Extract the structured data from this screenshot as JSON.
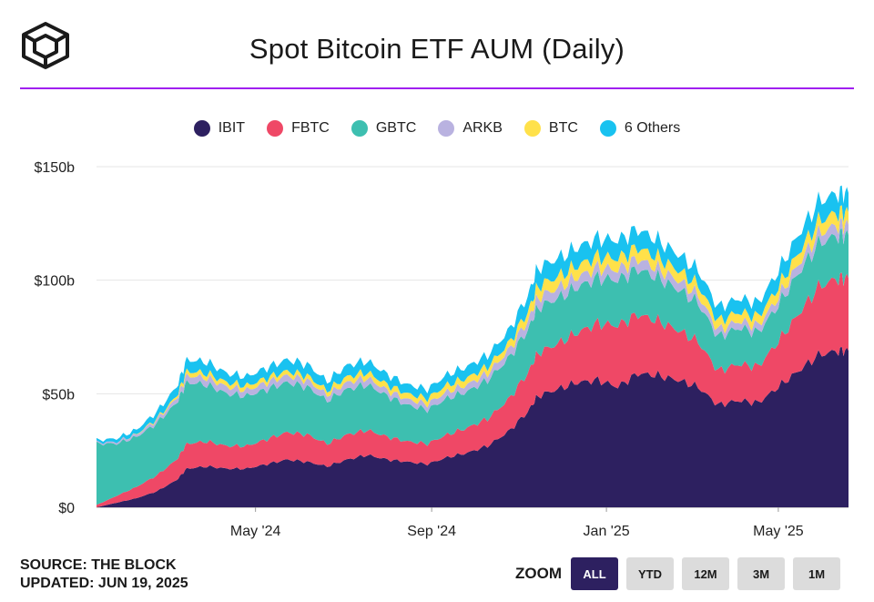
{
  "header": {
    "title": "Spot Bitcoin ETF AUM (Daily)"
  },
  "footer": {
    "source": "SOURCE: THE BLOCK",
    "updated": "UPDATED: JUN 19, 2025"
  },
  "zoom": {
    "label": "ZOOM",
    "buttons": [
      "ALL",
      "YTD",
      "12M",
      "3M",
      "1M"
    ],
    "active": "ALL"
  },
  "chart_data": {
    "type": "area",
    "stacked": true,
    "title": "Spot Bitcoin ETF AUM (Daily)",
    "ylim": [
      0,
      150
    ],
    "y_ticks": [
      0,
      50,
      100,
      150
    ],
    "y_tick_labels": [
      "$0",
      "$50b",
      "$100b",
      "$150b"
    ],
    "x_tick_labels": [
      "May '24",
      "Sep '24",
      "Jan '25",
      "May '25"
    ],
    "x_ticks": [
      "2024-05-01",
      "2024-09-01",
      "2025-01-01",
      "2025-05-01"
    ],
    "xlim": [
      "2024-01-11",
      "2025-06-19"
    ],
    "grid": true,
    "legend_position": "top-center",
    "x": [
      "2024-01-11",
      "2024-01-25",
      "2024-02-08",
      "2024-02-22",
      "2024-03-07",
      "2024-03-14",
      "2024-03-28",
      "2024-04-11",
      "2024-04-25",
      "2024-05-09",
      "2024-05-23",
      "2024-06-06",
      "2024-06-20",
      "2024-07-04",
      "2024-07-18",
      "2024-08-01",
      "2024-08-15",
      "2024-08-29",
      "2024-09-12",
      "2024-09-26",
      "2024-10-10",
      "2024-10-24",
      "2024-11-07",
      "2024-11-14",
      "2024-11-28",
      "2024-12-12",
      "2024-12-26",
      "2025-01-09",
      "2025-01-23",
      "2025-02-06",
      "2025-02-20",
      "2025-03-06",
      "2025-03-20",
      "2025-04-03",
      "2025-04-17",
      "2025-05-01",
      "2025-05-15",
      "2025-05-29",
      "2025-06-12",
      "2025-06-19"
    ],
    "series": [
      {
        "name": "IBIT",
        "color": "#2d2060",
        "values": [
          0,
          2,
          4,
          7,
          12,
          17,
          18,
          17,
          17,
          19,
          21,
          20,
          18,
          21,
          23,
          21,
          20,
          19,
          22,
          24,
          27,
          33,
          42,
          49,
          52,
          55,
          56,
          53,
          59,
          58,
          56,
          53,
          45,
          47,
          46,
          53,
          60,
          67,
          69,
          69
        ]
      },
      {
        "name": "FBTC",
        "color": "#ef4866",
        "values": [
          1,
          3,
          5,
          7,
          9,
          11,
          11,
          10,
          10,
          11,
          12,
          12,
          10,
          11,
          11,
          10,
          9,
          9,
          10,
          11,
          12,
          14,
          17,
          19,
          20,
          22,
          25,
          27,
          26,
          24,
          22,
          20,
          15,
          16,
          16,
          20,
          25,
          30,
          32,
          32
        ]
      },
      {
        "name": "GBTC",
        "color": "#3dbfb0",
        "values": [
          27,
          23,
          22,
          23,
          25,
          27,
          25,
          23,
          22,
          22,
          22,
          21,
          19,
          20,
          20,
          18,
          16,
          15,
          16,
          16,
          17,
          18,
          19,
          20,
          20,
          20,
          20,
          20,
          20,
          19,
          18,
          17,
          15,
          16,
          15,
          16,
          18,
          19,
          19,
          19
        ]
      },
      {
        "name": "ARKB",
        "color": "#b9b2e0",
        "values": [
          0.5,
          0.8,
          1,
          1.5,
          2,
          3,
          3,
          3,
          2.5,
          3,
          3,
          3,
          2.5,
          3,
          3,
          2.5,
          2.5,
          2.5,
          3,
          3,
          3,
          3.5,
          4,
          4.5,
          4.5,
          4.5,
          4.5,
          4.5,
          4.5,
          4,
          4,
          3.5,
          3,
          3,
          3,
          3.5,
          4,
          4.5,
          4.5,
          4.5
        ]
      },
      {
        "name": "BTC",
        "color": "#ffe14a",
        "values": [
          0,
          0,
          0.2,
          0.5,
          1,
          2,
          2,
          2,
          2,
          2,
          2,
          2,
          2,
          2.5,
          2.5,
          2.5,
          2.5,
          2.5,
          3,
          3,
          3,
          3,
          4,
          5,
          5,
          5,
          5,
          5,
          5,
          5,
          4.5,
          4.5,
          4,
          4,
          4,
          4.5,
          5,
          5.5,
          5.5,
          5.5
        ]
      },
      {
        "name": "6 Others",
        "color": "#19c2f0",
        "values": [
          1,
          1.5,
          2,
          3,
          4,
          5,
          5,
          4,
          4,
          4.5,
          5,
          5,
          4,
          5,
          5,
          4.5,
          4,
          4,
          4.5,
          5,
          5,
          5.5,
          7,
          8,
          8,
          8,
          8,
          8,
          8,
          7.5,
          7,
          6.5,
          6,
          6,
          6,
          7,
          8,
          8.5,
          8.5,
          8.5
        ]
      }
    ]
  }
}
